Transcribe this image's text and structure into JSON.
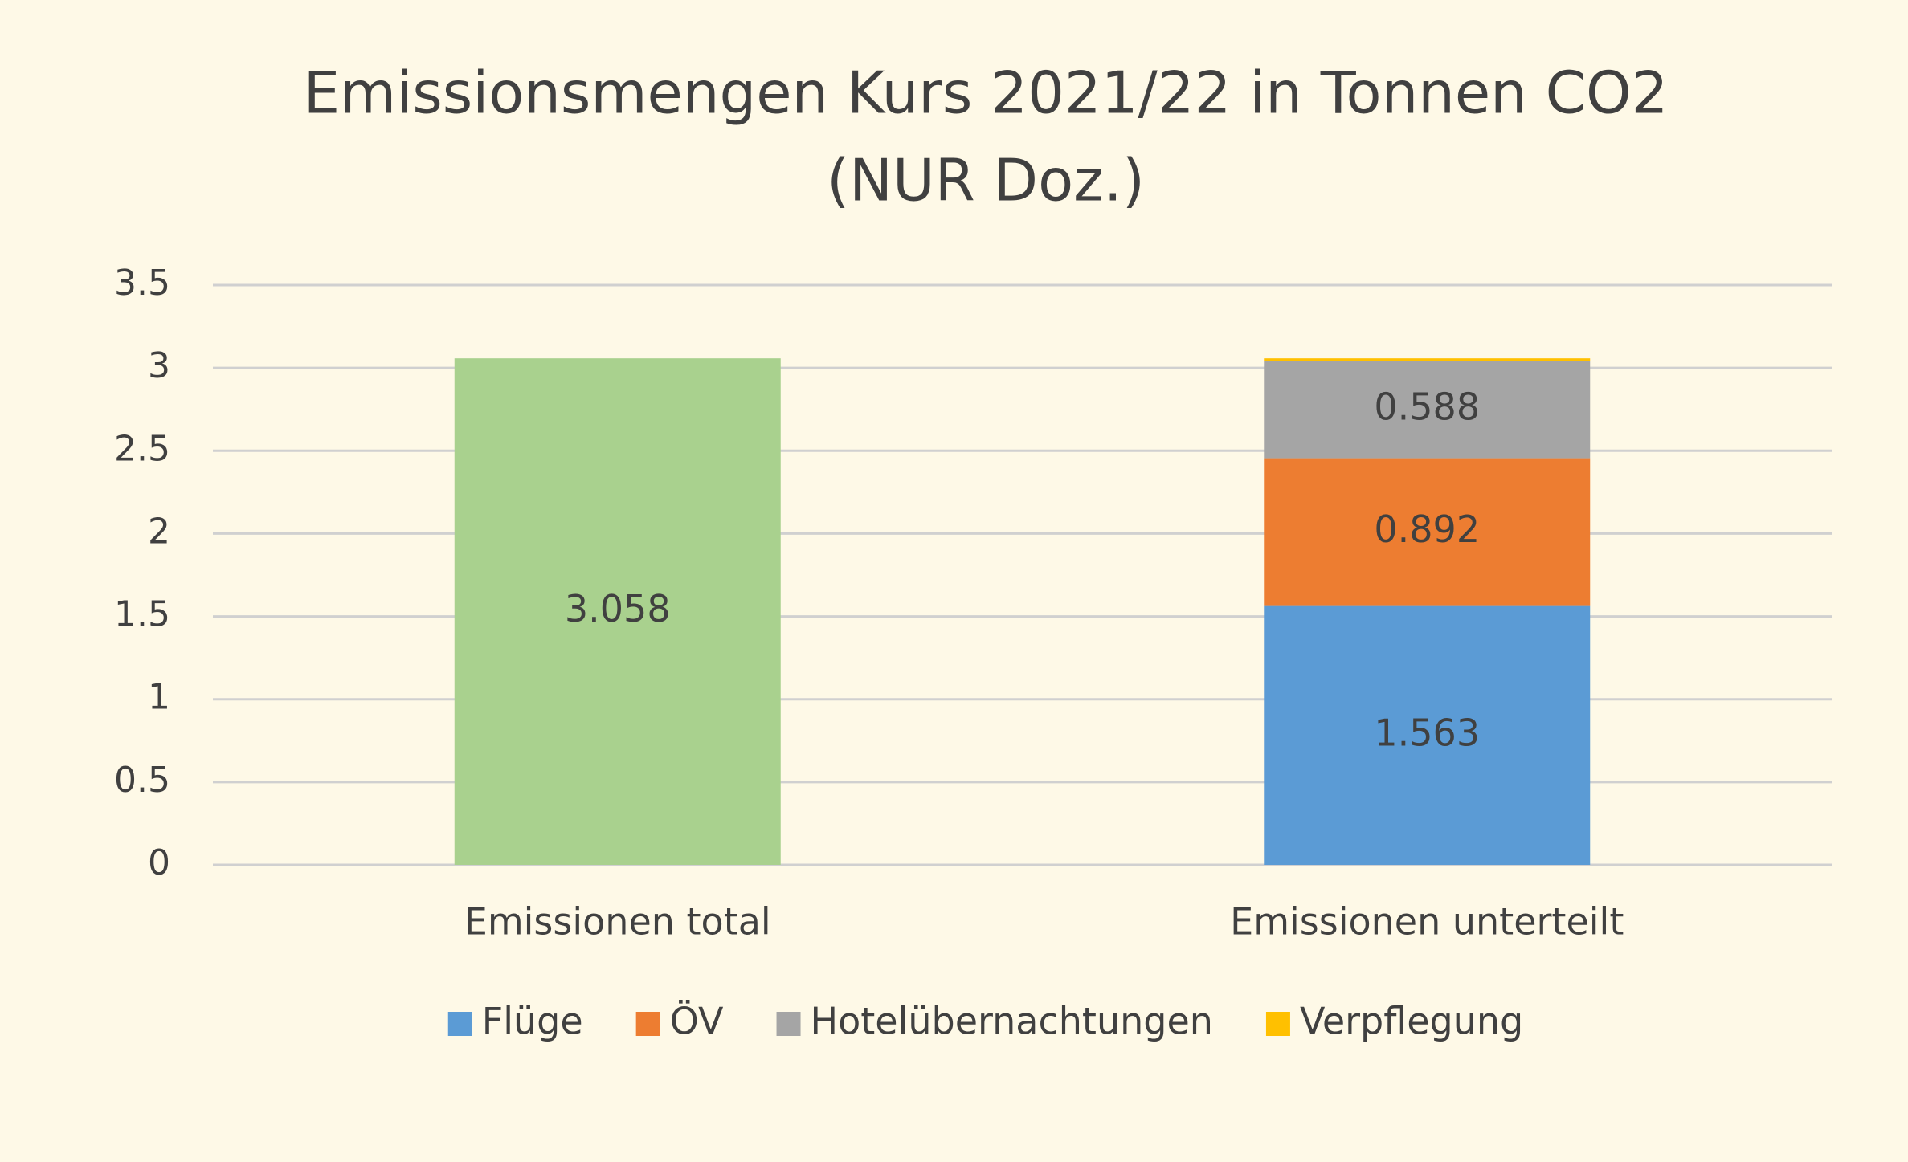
{
  "chart_data": {
    "type": "stacked_bar",
    "title": [
      "Emissionsmengen Kurs 2021/22 in Tonnen CO2",
      "(NUR Doz.)"
    ],
    "categories": [
      "Emissionen total",
      "Emissionen unterteilt"
    ],
    "series": [
      {
        "color": "#a9d18e",
        "values": [
          3.058,
          null
        ]
      },
      {
        "name": "Flüge",
        "color": "#5b9bd5",
        "values": [
          null,
          1.563
        ]
      },
      {
        "name": "ÖV",
        "color": "#ed7d31",
        "values": [
          null,
          0.892
        ]
      },
      {
        "name": "Hotelübernachtungen",
        "color": "#a5a5a5",
        "values": [
          null,
          0.588
        ]
      },
      {
        "name": "Verpflegung",
        "color": "#ffc000",
        "values": [
          null,
          0.015
        ],
        "data_labels": false
      }
    ],
    "ylim": [
      0,
      3.5
    ],
    "yticks": [
      0,
      0.5,
      1,
      1.5,
      2,
      2.5,
      3,
      3.5
    ],
    "grid": true,
    "legend": "bottom"
  }
}
